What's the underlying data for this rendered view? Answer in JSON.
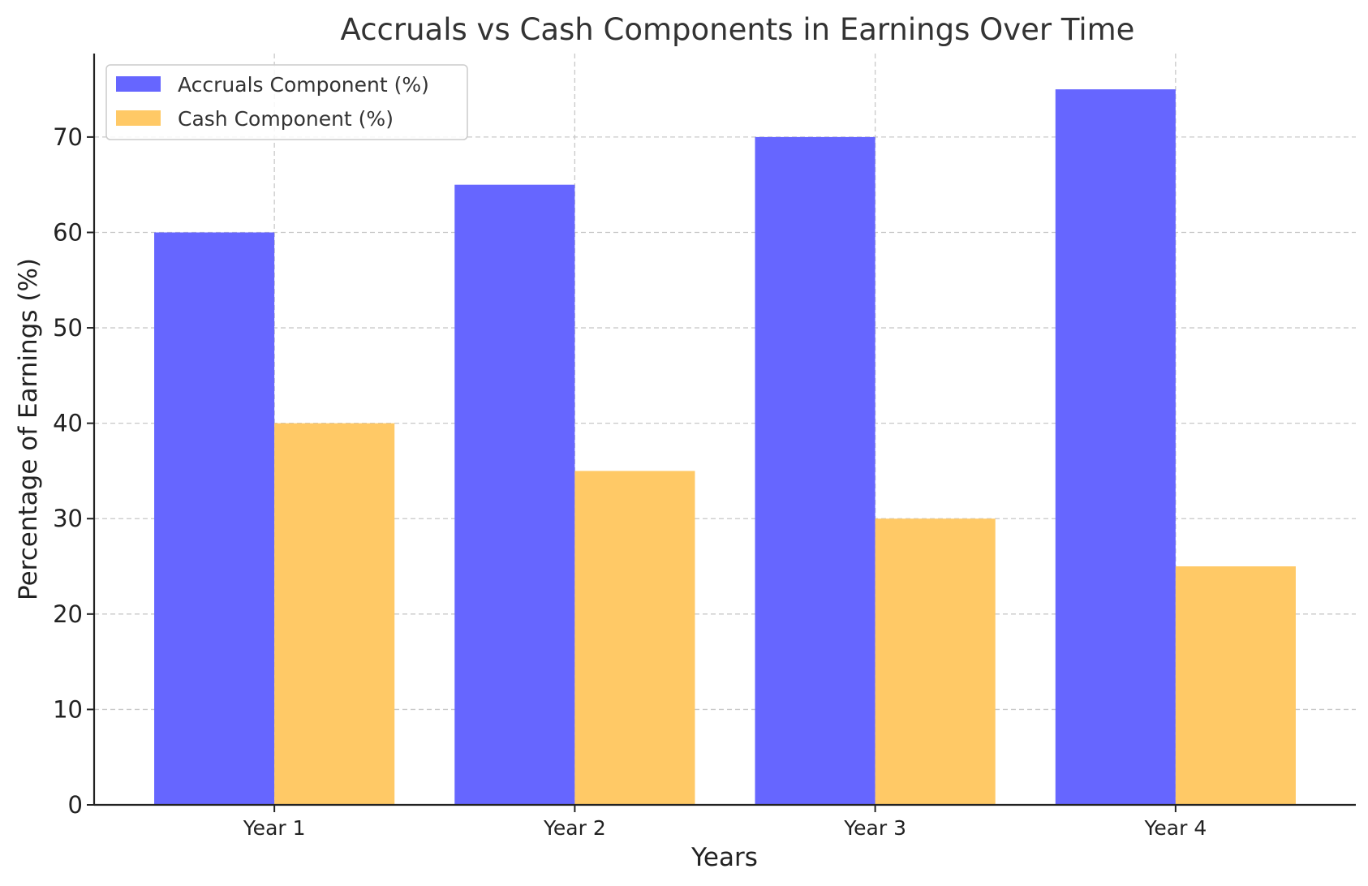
{
  "chart_data": {
    "type": "bar",
    "title": "Accruals vs Cash Components in Earnings Over Time",
    "xlabel": "Years",
    "ylabel": "Percentage of Earnings (%)",
    "categories": [
      "Year 1",
      "Year 2",
      "Year 3",
      "Year 4"
    ],
    "series": [
      {
        "name": "Accruals Component (%)",
        "values": [
          60,
          65,
          70,
          75
        ],
        "color": "#6666ff"
      },
      {
        "name": "Cash Component (%)",
        "values": [
          40,
          35,
          30,
          25
        ],
        "color": "#ffc966"
      }
    ],
    "yticks": [
      0,
      10,
      20,
      30,
      40,
      50,
      60,
      70
    ],
    "ylim": [
      0,
      78.75
    ],
    "grid": true,
    "legend": "top-left"
  }
}
